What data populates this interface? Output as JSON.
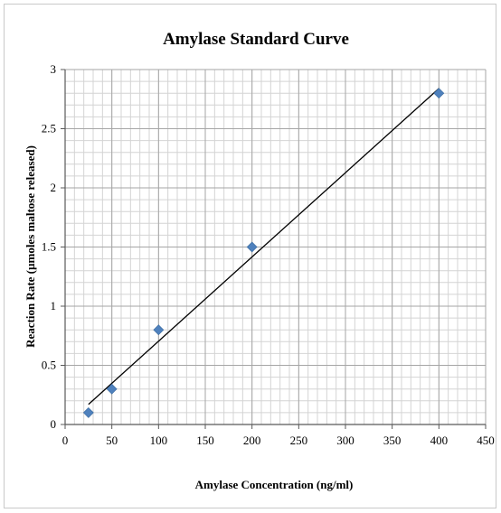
{
  "chart_data": {
    "type": "scatter",
    "title": "Amylase Standard Curve",
    "xlabel": "Amylase Concentration (ng/ml)",
    "ylabel": "Reaction Rate (µmoles maltose released)",
    "xlim": [
      0,
      450
    ],
    "ylim": [
      0,
      3
    ],
    "x_ticks": [
      0,
      50,
      100,
      150,
      200,
      250,
      300,
      350,
      400,
      450
    ],
    "y_ticks": [
      0,
      0.5,
      1,
      1.5,
      2,
      2.5,
      3
    ],
    "grid": true,
    "legend": "none",
    "marker": "diamond",
    "series": [
      {
        "x": [
          25,
          50,
          100,
          200,
          400
        ],
        "y": [
          0.1,
          0.3,
          0.8,
          1.5,
          2.8
        ],
        "color": "#4f81bd"
      }
    ],
    "trendline": {
      "type": "linear",
      "x": [
        25,
        400
      ],
      "y": [
        0.17,
        2.84
      ],
      "color": "#000000"
    }
  }
}
